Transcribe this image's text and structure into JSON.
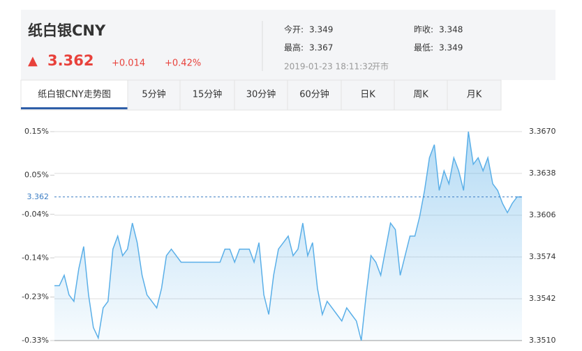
{
  "header": {
    "title": "纸白银CNY",
    "price": "3.362",
    "change": "+0.014",
    "change_pct": "+0.42%",
    "info": [
      {
        "label": "今开:",
        "value": "3.349"
      },
      {
        "label": "昨收:",
        "value": "3.348"
      },
      {
        "label": "最高:",
        "value": "3.367"
      },
      {
        "label": "最低:",
        "value": "3.349"
      }
    ],
    "timestamp": "2019-01-23 18:11:32",
    "status": "开市"
  },
  "tabs": [
    "纸白银CNY走势图",
    "5分钟",
    "15分钟",
    "30分钟",
    "60分钟",
    "日K",
    "周K",
    "月K"
  ],
  "chart_data": {
    "type": "line",
    "color": "#5aafe8",
    "values": [
      3.3552,
      3.3552,
      3.356,
      3.3545,
      3.354,
      3.3565,
      3.3582,
      3.3545,
      3.352,
      3.3512,
      3.3535,
      3.354,
      3.358,
      3.359,
      3.3575,
      3.358,
      3.36,
      3.3585,
      3.356,
      3.3545,
      3.354,
      3.3535,
      3.355,
      3.3575,
      3.358,
      3.3575,
      3.357,
      3.357,
      3.357,
      3.357,
      3.357,
      3.357,
      3.357,
      3.357,
      3.357,
      3.358,
      3.358,
      3.357,
      3.358,
      3.358,
      3.358,
      3.357,
      3.3585,
      3.3545,
      3.353,
      3.356,
      3.358,
      3.3585,
      3.359,
      3.3575,
      3.358,
      3.36,
      3.3575,
      3.3585,
      3.355,
      3.353,
      3.354,
      3.3535,
      3.353,
      3.3525,
      3.3535,
      3.353,
      3.3525,
      3.351,
      3.3545,
      3.3575,
      3.357,
      3.356,
      3.358,
      3.36,
      3.3595,
      3.356,
      3.3575,
      3.359,
      3.359,
      3.3605,
      3.3625,
      3.365,
      3.366,
      3.3625,
      3.364,
      3.363,
      3.365,
      3.364,
      3.3625,
      3.367,
      3.3645,
      3.365,
      3.364,
      3.365,
      3.363,
      3.3625,
      3.3615,
      3.3608,
      3.3615,
      3.362,
      3.362
    ],
    "ylim": [
      3.351,
      3.367
    ],
    "yticks": [
      {
        "value": 3.367,
        "label": "3.3670"
      },
      {
        "value": 3.3638,
        "label": "3.3638"
      },
      {
        "value": 3.3606,
        "label": "3.3606"
      },
      {
        "value": 3.3574,
        "label": "3.3574"
      },
      {
        "value": 3.3542,
        "label": "3.3542"
      },
      {
        "value": 3.351,
        "label": "3.3510"
      }
    ],
    "y2lim": [
      -0.33,
      0.15
    ],
    "y2ticks": [
      {
        "value": 0.15,
        "label": "0.15%"
      },
      {
        "value": 0.05,
        "label": "0.05%"
      },
      {
        "value": -0.04,
        "label": "-0.04%"
      },
      {
        "value": -0.14,
        "label": "-0.14%"
      },
      {
        "value": -0.23,
        "label": "-0.23%"
      },
      {
        "value": -0.33,
        "label": "-0.33%"
      }
    ],
    "ref_line": 3.362,
    "grid": true
  }
}
